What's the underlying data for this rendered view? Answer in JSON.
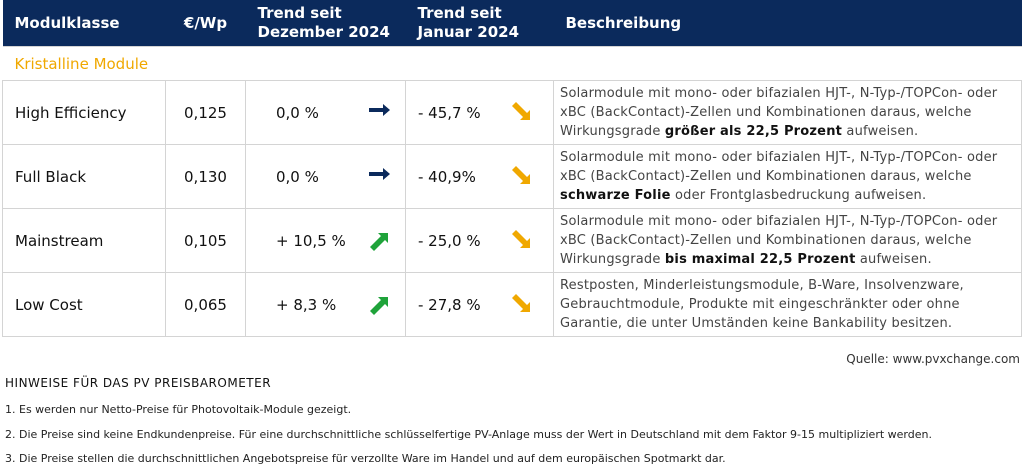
{
  "table": {
    "header": [
      "Modulklasse",
      "€/Wp",
      "Trend seit Dezember 2024",
      "Trend seit Januar 2024",
      "Beschreibung"
    ],
    "section": "Kristalline Module",
    "rows": [
      {
        "name": "High Efficiency",
        "price": "0,125",
        "trend_dec": "0,0 %",
        "trend_jan": "- 45,7 %",
        "description": {
          "before": "Solarmodule mit mono- oder bifazialen HJT-, N-Typ-/TOPCon- oder xBC (BackContact)-Zellen und Kombinationen daraus, welche Wirkungsgrade ",
          "emphasis": "größer als 22,5 Prozent",
          "after": " aufweisen."
        }
      },
      {
        "name": "Full Black",
        "price": "0,130",
        "trend_dec": "0,0 %",
        "trend_jan": "- 40,9%",
        "description": {
          "before": "Solarmodule mit mono- oder bifazialen HJT-, N-Typ-/TOPCon- oder xBC (BackContact)-Zellen und Kombinationen daraus, welche ",
          "emphasis": "schwarze Folie",
          "after": " oder Frontglasbedruckung aufweisen."
        }
      },
      {
        "name": "Mainstream",
        "price": "0,105",
        "trend_dec": "+ 10,5 %",
        "trend_jan": "- 25,0 %",
        "description": {
          "before": "Solarmodule mit mono- oder bifazialen HJT-, N-Typ-/TOPCon- oder xBC (BackContact)-Zellen und Kombinationen daraus, welche Wirkungsgrade ",
          "emphasis": "bis maximal 22,5 Prozent",
          "after": " aufweisen."
        }
      },
      {
        "name": "Low Cost",
        "price": "0,065",
        "trend_dec": "+  8,3 %",
        "trend_jan": "- 27,8 %",
        "description": {
          "before": "Restposten, Minderleistungsmodule, B-Ware, Insolvenzware, Gebrauchtmodule, Produkte mit eingeschränkter oder ohne Garantie, die unter Umständen keine Bankability besitzen."
        }
      }
    ]
  },
  "source": "Quelle: www.pvxchange.com",
  "notes": {
    "title": "HINWEISE FÜR DAS PV PREISBAROMETER",
    "items": [
      "1.  Es werden nur Netto-Preise für Photovoltaik-Module gezeigt.",
      "2. Die Preise sind keine Endkundenpreise. Für eine durchschnittliche schlüsselfertige PV-Anlage muss der Wert in Deutschland mit dem Faktor 9-15 multipliziert werden.",
      "3. Die Preise stellen die durchschnittlichen Angebotspreise für verzollte Ware im Handel und auf dem europäischen Spotmarkt dar."
    ]
  }
}
